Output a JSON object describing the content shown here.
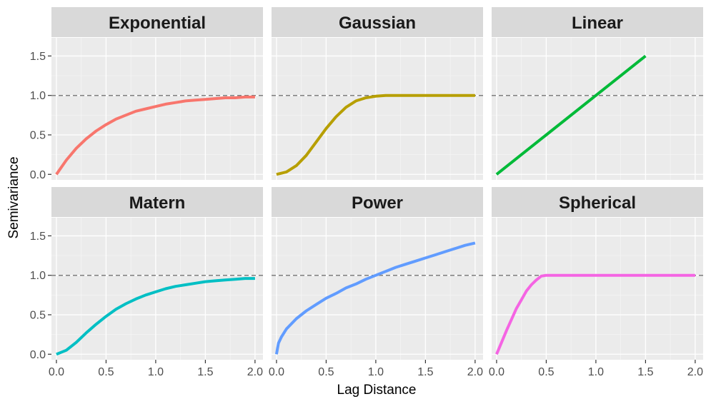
{
  "chart_data": {
    "type": "line",
    "layout": "facet grid 2 rows x 3 columns, shared axes",
    "xlabel": "Lag Distance",
    "ylabel": "Semivariance",
    "xlim": [
      -0.05,
      2.08
    ],
    "ylim": [
      -0.07,
      1.73
    ],
    "x_ticks": [
      0,
      0.5,
      1,
      1.5,
      2
    ],
    "x_tick_labels": [
      "0.0",
      "0.5",
      "1.0",
      "1.5",
      "2.0"
    ],
    "y_ticks": [
      0,
      0.5,
      1,
      1.5
    ],
    "y_tick_labels": [
      "0.0",
      "0.5",
      "1.0",
      "1.5"
    ],
    "grid": true,
    "legend": "none",
    "reference_line": {
      "y": 1.0,
      "style": "dashed",
      "color": "#7f7f7f"
    },
    "x": [
      0,
      0.1,
      0.2,
      0.3,
      0.4,
      0.5,
      0.6,
      0.7,
      0.8,
      0.9,
      1.0,
      1.1,
      1.2,
      1.3,
      1.4,
      1.5,
      1.6,
      1.7,
      1.8,
      1.9,
      2.0
    ],
    "series": [
      {
        "name": "Exponential",
        "color": "#F8766D",
        "x": [
          0,
          0.1,
          0.2,
          0.3,
          0.4,
          0.5,
          0.6,
          0.7,
          0.8,
          0.9,
          1.0,
          1.1,
          1.2,
          1.3,
          1.4,
          1.5,
          1.6,
          1.7,
          1.8,
          1.9,
          2.0
        ],
        "values": [
          0,
          0.18,
          0.33,
          0.45,
          0.55,
          0.63,
          0.7,
          0.75,
          0.8,
          0.83,
          0.86,
          0.89,
          0.91,
          0.93,
          0.94,
          0.95,
          0.96,
          0.97,
          0.97,
          0.98,
          0.98
        ]
      },
      {
        "name": "Gaussian",
        "color": "#B79F00",
        "x": [
          0,
          0.1,
          0.2,
          0.3,
          0.4,
          0.5,
          0.6,
          0.7,
          0.8,
          0.9,
          1.0,
          1.1,
          1.2,
          1.3,
          1.4,
          1.5,
          1.6,
          1.7,
          1.8,
          1.9,
          2.0
        ],
        "values": [
          0,
          0.03,
          0.11,
          0.24,
          0.41,
          0.58,
          0.73,
          0.85,
          0.93,
          0.97,
          0.99,
          1.0,
          1.0,
          1.0,
          1.0,
          1.0,
          1.0,
          1.0,
          1.0,
          1.0,
          1.0
        ]
      },
      {
        "name": "Linear",
        "color": "#00BA38",
        "x": [
          0,
          0.5,
          1.0,
          1.5
        ],
        "values": [
          0,
          0.5,
          1.0,
          1.5
        ]
      },
      {
        "name": "Matern",
        "color": "#00BFC4",
        "x": [
          0,
          0.1,
          0.2,
          0.3,
          0.4,
          0.5,
          0.6,
          0.7,
          0.8,
          0.9,
          1.0,
          1.1,
          1.2,
          1.3,
          1.4,
          1.5,
          1.6,
          1.7,
          1.8,
          1.9,
          2.0
        ],
        "values": [
          0,
          0.05,
          0.15,
          0.27,
          0.38,
          0.48,
          0.57,
          0.64,
          0.7,
          0.75,
          0.79,
          0.83,
          0.86,
          0.88,
          0.9,
          0.92,
          0.93,
          0.94,
          0.95,
          0.96,
          0.96
        ]
      },
      {
        "name": "Power",
        "color": "#619CFF",
        "x": [
          0,
          0.02,
          0.05,
          0.1,
          0.2,
          0.3,
          0.4,
          0.5,
          0.6,
          0.7,
          0.8,
          0.9,
          1.0,
          1.1,
          1.2,
          1.3,
          1.4,
          1.5,
          1.6,
          1.7,
          1.8,
          1.9,
          2.0
        ],
        "values": [
          0,
          0.14,
          0.22,
          0.32,
          0.45,
          0.55,
          0.63,
          0.71,
          0.77,
          0.84,
          0.89,
          0.95,
          1.0,
          1.05,
          1.1,
          1.14,
          1.18,
          1.22,
          1.26,
          1.3,
          1.34,
          1.38,
          1.41
        ]
      },
      {
        "name": "Spherical",
        "color": "#F564E3",
        "x": [
          0,
          0.05,
          0.1,
          0.15,
          0.2,
          0.25,
          0.3,
          0.35,
          0.4,
          0.45,
          0.5,
          0.6,
          0.8,
          1.0,
          1.2,
          1.4,
          1.6,
          1.8,
          2.0
        ],
        "values": [
          0,
          0.15,
          0.3,
          0.44,
          0.58,
          0.69,
          0.8,
          0.88,
          0.94,
          0.99,
          1.0,
          1.0,
          1.0,
          1.0,
          1.0,
          1.0,
          1.0,
          1.0,
          1.0
        ]
      }
    ]
  }
}
